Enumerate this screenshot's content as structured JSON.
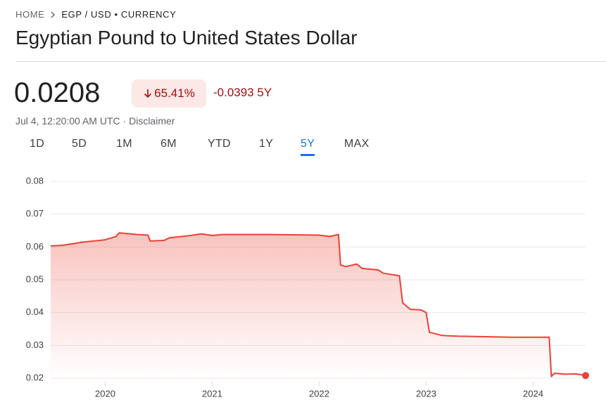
{
  "breadcrumb": {
    "home": "HOME",
    "current": "EGP / USD • CURRENCY"
  },
  "title": "Egyptian Pound to United States Dollar",
  "price": "0.0208",
  "percent_change": "65.41%",
  "absolute_change": "-0.0393 5Y",
  "timestamp": "Jul 4, 12:20:00 AM UTC",
  "disclaimer": "Disclaimer",
  "tabs": [
    "1D",
    "5D",
    "1M",
    "6M",
    "YTD",
    "1Y",
    "5Y",
    "MAX"
  ],
  "selected_tab": "5Y",
  "chart_data": {
    "type": "line",
    "color": "#e94235",
    "grid": true,
    "x": [
      2019.49,
      2019.6,
      2019.8,
      2020.0,
      2020.1,
      2020.13,
      2020.3,
      2020.4,
      2020.42,
      2020.55,
      2020.6,
      2020.8,
      2020.9,
      2021.0,
      2021.1,
      2021.5,
      2022.0,
      2022.1,
      2022.18,
      2022.2,
      2022.25,
      2022.35,
      2022.4,
      2022.55,
      2022.6,
      2022.75,
      2022.78,
      2022.85,
      2022.95,
      2023.0,
      2023.03,
      2023.15,
      2023.3,
      2023.8,
      2024.15,
      2024.17,
      2024.2,
      2024.3,
      2024.4,
      2024.49
    ],
    "values": [
      0.0603,
      0.0605,
      0.0615,
      0.0622,
      0.0632,
      0.0643,
      0.0638,
      0.0636,
      0.0618,
      0.062,
      0.0628,
      0.0635,
      0.064,
      0.0635,
      0.0638,
      0.0638,
      0.0636,
      0.0632,
      0.0638,
      0.0545,
      0.054,
      0.0548,
      0.0535,
      0.053,
      0.052,
      0.0512,
      0.043,
      0.041,
      0.0408,
      0.04,
      0.034,
      0.033,
      0.0328,
      0.0325,
      0.0325,
      0.0205,
      0.0215,
      0.0212,
      0.0213,
      0.0208
    ],
    "xlim": [
      2019.49,
      2024.49
    ],
    "xticks": [
      2020,
      2021,
      2022,
      2023,
      2024
    ],
    "ylim": [
      0.02,
      0.08
    ],
    "yticks": [
      0.02,
      0.03,
      0.04,
      0.05,
      0.06,
      0.07,
      0.08
    ]
  }
}
